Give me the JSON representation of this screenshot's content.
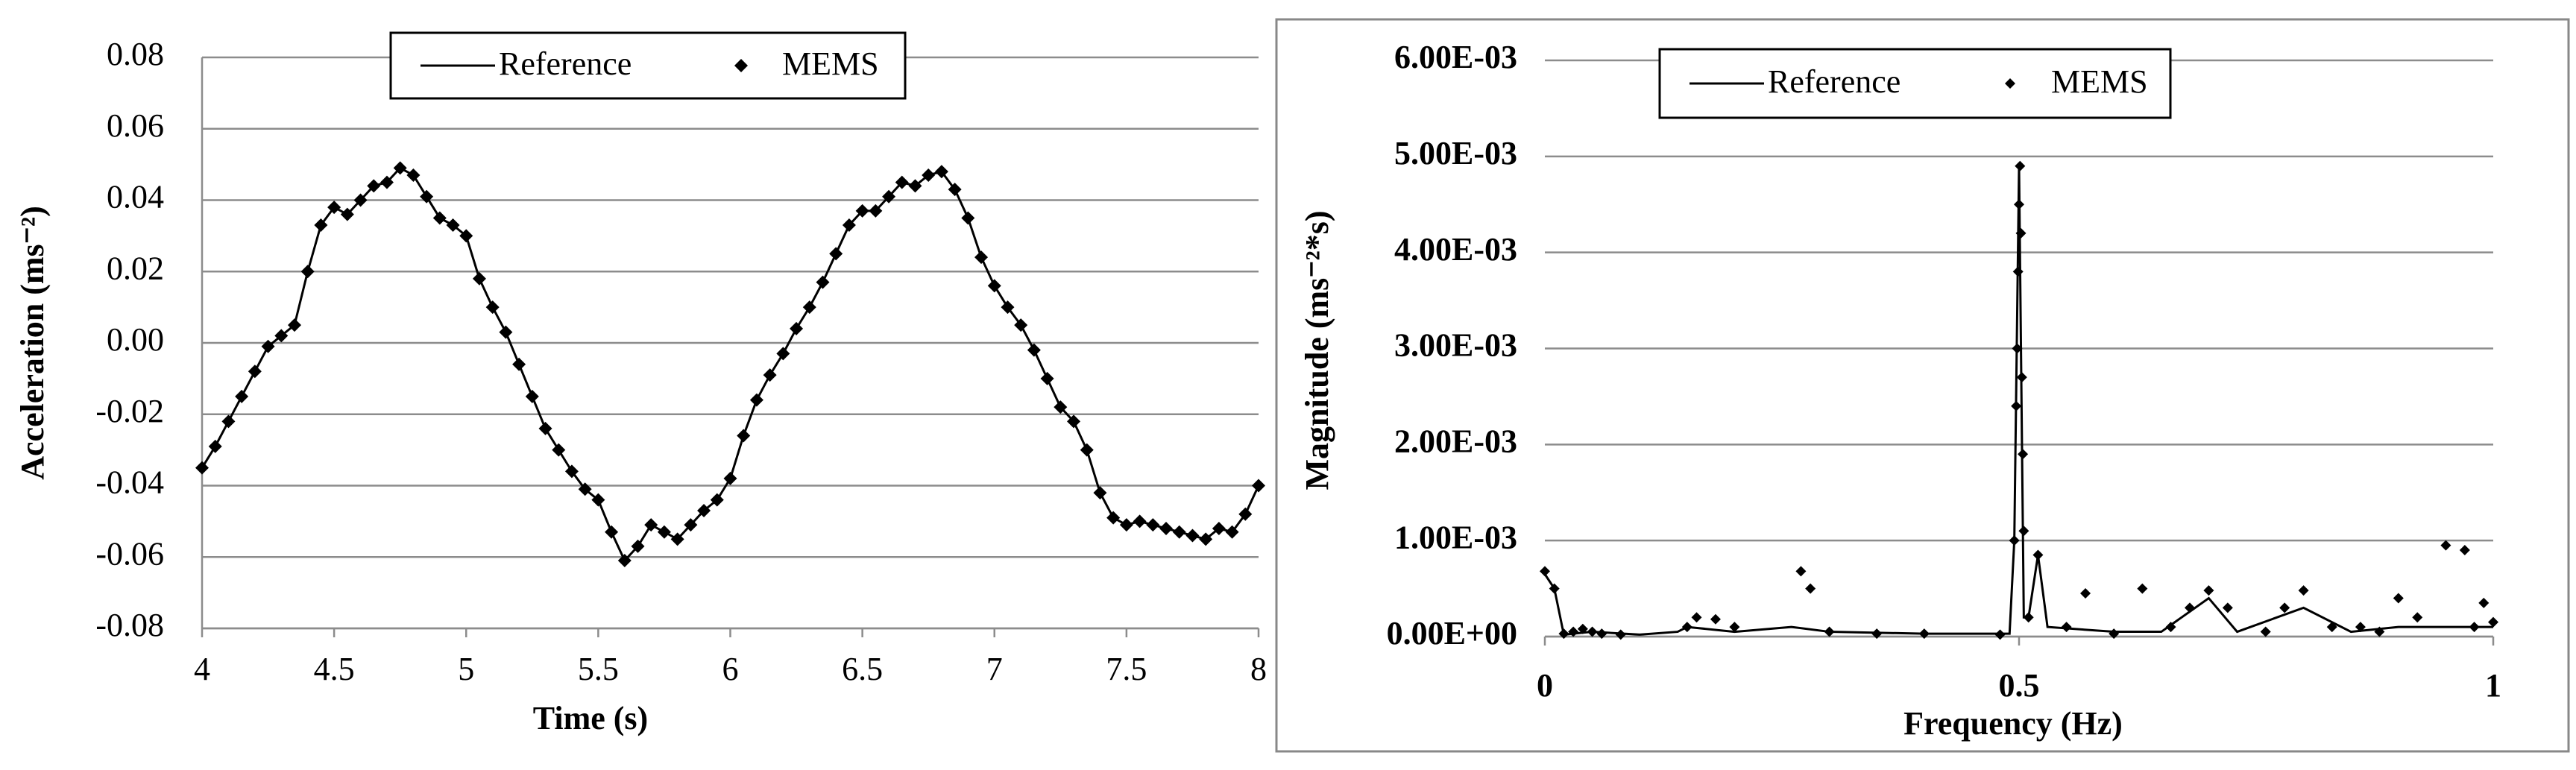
{
  "chart_data": [
    {
      "type": "line",
      "x_label": "Time (s)",
      "y_label": "Acceleration  (ms⁻²)",
      "xlim": [
        4,
        8
      ],
      "ylim": [
        -0.08,
        0.08
      ],
      "xticks": [
        4,
        4.5,
        5,
        5.5,
        6,
        6.5,
        7,
        7.5,
        8
      ],
      "yticks": [
        -0.08,
        -0.06,
        -0.04,
        -0.02,
        {
          "value": 0,
          "label": "0.00"
        },
        0.02,
        0.04,
        0.06,
        0.08
      ],
      "grid": true,
      "x": [
        4.0,
        4.05,
        4.1,
        4.15,
        4.2,
        4.25,
        4.3,
        4.35,
        4.4,
        4.45,
        4.5,
        4.55,
        4.6,
        4.65,
        4.7,
        4.75,
        4.8,
        4.85,
        4.9,
        4.95,
        5.0,
        5.05,
        5.1,
        5.15,
        5.2,
        5.25,
        5.3,
        5.35,
        5.4,
        5.45,
        5.5,
        5.55,
        5.6,
        5.65,
        5.7,
        5.75,
        5.8,
        5.85,
        5.9,
        5.95,
        6.0,
        6.05,
        6.1,
        6.15,
        6.2,
        6.25,
        6.3,
        6.35,
        6.4,
        6.45,
        6.5,
        6.55,
        6.6,
        6.65,
        6.7,
        6.75,
        6.8,
        6.85,
        6.9,
        6.95,
        7.0,
        7.05,
        7.1,
        7.15,
        7.2,
        7.25,
        7.3,
        7.35,
        7.4,
        7.45,
        7.5,
        7.55,
        7.6,
        7.65,
        7.7,
        7.75,
        7.8,
        7.85,
        7.9,
        7.95,
        8.0
      ],
      "series": [
        {
          "name": "Reference",
          "color": "#000000",
          "style": "line",
          "values": [
            -0.035,
            -0.029,
            -0.022,
            -0.015,
            -0.008,
            -0.001,
            0.002,
            0.005,
            0.02,
            0.033,
            0.038,
            0.036,
            0.04,
            0.044,
            0.045,
            0.049,
            0.047,
            0.041,
            0.035,
            0.033,
            0.03,
            0.018,
            0.01,
            0.003,
            -0.006,
            -0.015,
            -0.024,
            -0.03,
            -0.036,
            -0.041,
            -0.044,
            -0.053,
            -0.061,
            -0.057,
            -0.051,
            -0.053,
            -0.055,
            -0.051,
            -0.047,
            -0.044,
            -0.038,
            -0.026,
            -0.016,
            -0.009,
            -0.003,
            0.004,
            0.01,
            0.017,
            0.025,
            0.033,
            0.037,
            0.037,
            0.041,
            0.045,
            0.044,
            0.047,
            0.048,
            0.043,
            0.035,
            0.024,
            0.016,
            0.01,
            0.005,
            -0.002,
            -0.01,
            -0.018,
            -0.022,
            -0.03,
            -0.042,
            -0.049,
            -0.051,
            -0.05,
            -0.051,
            -0.052,
            -0.053,
            -0.054,
            -0.055,
            -0.052,
            -0.053,
            -0.048,
            -0.04
          ]
        },
        {
          "name": "MEMS",
          "color": "#000000",
          "style": "markers",
          "values": [
            -0.035,
            -0.029,
            -0.022,
            -0.015,
            -0.008,
            -0.001,
            0.002,
            0.005,
            0.02,
            0.033,
            0.038,
            0.036,
            0.04,
            0.044,
            0.045,
            0.049,
            0.047,
            0.041,
            0.035,
            0.033,
            0.03,
            0.018,
            0.01,
            0.003,
            -0.006,
            -0.015,
            -0.024,
            -0.03,
            -0.036,
            -0.041,
            -0.044,
            -0.053,
            -0.061,
            -0.057,
            -0.051,
            -0.053,
            -0.055,
            -0.051,
            -0.047,
            -0.044,
            -0.038,
            -0.026,
            -0.016,
            -0.009,
            -0.003,
            0.004,
            0.01,
            0.017,
            0.025,
            0.033,
            0.037,
            0.037,
            0.041,
            0.045,
            0.044,
            0.047,
            0.048,
            0.043,
            0.035,
            0.024,
            0.016,
            0.01,
            0.005,
            -0.002,
            -0.01,
            -0.018,
            -0.022,
            -0.03,
            -0.042,
            -0.049,
            -0.051,
            -0.05,
            -0.051,
            -0.052,
            -0.053,
            -0.054,
            -0.055,
            -0.052,
            -0.053,
            -0.048,
            -0.04
          ]
        }
      ]
    },
    {
      "type": "line",
      "x_label": "Frequency (Hz)",
      "y_label": "Magnitude (ms⁻²*s)",
      "xlim": [
        0,
        1
      ],
      "ylim": [
        0,
        0.006
      ],
      "xticks": [
        0,
        0.5,
        1
      ],
      "yticks": [
        {
          "value": 0,
          "label": "0.00E+00"
        },
        {
          "value": 0.001,
          "label": "1.00E-03"
        },
        {
          "value": 0.002,
          "label": "2.00E-03"
        },
        {
          "value": 0.003,
          "label": "3.00E-03"
        },
        {
          "value": 0.004,
          "label": "4.00E-03"
        },
        {
          "value": 0.005,
          "label": "5.00E-03"
        },
        {
          "value": 0.006,
          "label": "6.00E-03"
        }
      ],
      "grid": true,
      "series": [
        {
          "name": "Reference",
          "color": "#000000",
          "style": "line",
          "x": [
            0,
            0.01,
            0.02,
            0.05,
            0.1,
            0.14,
            0.15,
            0.2,
            0.26,
            0.3,
            0.4,
            0.49,
            0.495,
            0.5,
            0.505,
            0.51,
            0.52,
            0.53,
            0.6,
            0.65,
            0.7,
            0.73,
            0.8,
            0.85,
            0.9,
            1.0
          ],
          "values": [
            0.00065,
            0.0005,
            2e-05,
            5e-05,
            2e-05,
            5e-05,
            0.0001,
            5e-05,
            0.0001,
            5e-05,
            3e-05,
            3e-05,
            0.001,
            0.0049,
            0.0002,
            0.0002,
            0.00085,
            0.0001,
            5e-05,
            5e-05,
            0.0004,
            5e-05,
            0.0003,
            5e-05,
            0.0001,
            0.0001
          ]
        },
        {
          "name": "MEMS",
          "color": "#000000",
          "style": "markers",
          "x": [
            0,
            0.01,
            0.02,
            0.03,
            0.04,
            0.05,
            0.06,
            0.08,
            0.15,
            0.16,
            0.18,
            0.2,
            0.27,
            0.28,
            0.3,
            0.35,
            0.4,
            0.48,
            0.495,
            0.497,
            0.498,
            0.499,
            0.5,
            0.501,
            0.502,
            0.503,
            0.504,
            0.505,
            0.51,
            0.52,
            0.55,
            0.57,
            0.6,
            0.63,
            0.66,
            0.68,
            0.7,
            0.72,
            0.76,
            0.78,
            0.8,
            0.83,
            0.86,
            0.88,
            0.9,
            0.92,
            0.95,
            0.97,
            0.98,
            0.99,
            1.0
          ],
          "values": [
            0.00068,
            0.0005,
            3e-05,
            5e-05,
            8e-05,
            5e-05,
            3e-05,
            2e-05,
            0.0001,
            0.0002,
            0.00018,
            0.0001,
            0.00068,
            0.0005,
            5e-05,
            3e-05,
            3e-05,
            2e-05,
            0.001,
            0.0024,
            0.003,
            0.0038,
            0.0045,
            0.0049,
            0.0042,
            0.0027,
            0.0019,
            0.0011,
            0.0002,
            0.00085,
            0.0001,
            0.00045,
            3e-05,
            0.0005,
            0.0001,
            0.0003,
            0.00048,
            0.0003,
            5e-05,
            0.0003,
            0.00048,
            0.0001,
            0.0001,
            5e-05,
            0.0004,
            0.0002,
            0.00095,
            0.0009,
            0.0001,
            0.00035,
            0.00015
          ]
        }
      ]
    }
  ]
}
